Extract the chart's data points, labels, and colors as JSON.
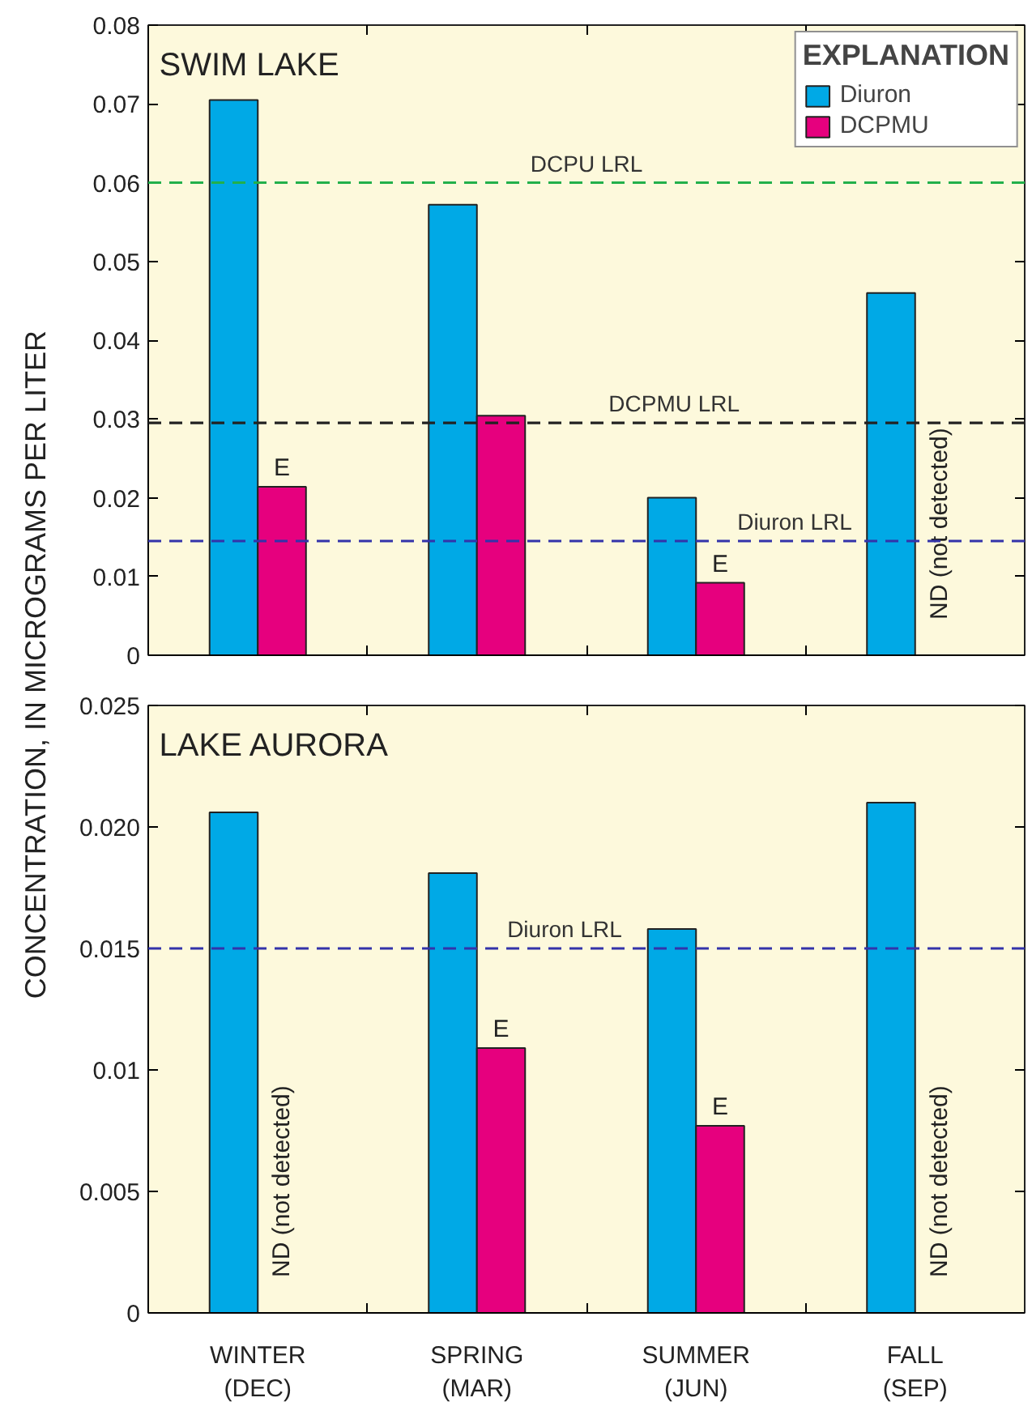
{
  "chart_data": [
    {
      "type": "bar",
      "title": "SWIM LAKE",
      "ylabel": "CONCENTRATION, IN MICROGRAMS PER LITER",
      "legend_title": "EXPLANATION",
      "legend": "top right",
      "tick_labels": "y",
      "categories": [
        "WINTER\n(DEC)",
        "SPRING\n(MAR)",
        "SUMMER\n(JUN)",
        "FALL\n(SEP)"
      ],
      "series": [
        {
          "name": "Diuron",
          "color": "#00a9e6",
          "values": [
            0.0705,
            0.0572,
            0.02,
            0.046
          ]
        },
        {
          "name": "DCPMU",
          "color": "#e6007e",
          "values": [
            0.0214,
            0.0304,
            0.0092,
            null
          ],
          "value_labels": [
            "E",
            null,
            "E",
            null
          ]
        }
      ],
      "ylim": [
        0,
        0.08
      ],
      "yticks": [
        0,
        0.01,
        0.02,
        0.03,
        0.04,
        0.05,
        0.06,
        0.07,
        0.08
      ],
      "ref_lines": [
        {
          "axis": "y",
          "value": 0.06,
          "label": "DCPU LRL",
          "color": "#22b04b",
          "line_style": "dashed"
        },
        {
          "axis": "y",
          "value": 0.0295,
          "label": "DCPMU LRL",
          "color": "#222222",
          "line_style": "dashed"
        },
        {
          "axis": "y",
          "value": 0.0145,
          "label": "Diuron LRL",
          "color": "#3333aa",
          "line_style": "dashed"
        }
      ],
      "annotations": [
        {
          "text": "ND (not detected)",
          "x": "FALL\n(SEP)"
        }
      ]
    },
    {
      "type": "bar",
      "title": "LAKE AURORA",
      "categories": [
        "WINTER\n(DEC)",
        "SPRING\n(MAR)",
        "SUMMER\n(JUN)",
        "FALL\n(SEP)"
      ],
      "series": [
        {
          "color": "#00a9e6",
          "values": [
            0.0206,
            0.0181,
            0.0158,
            0.021
          ]
        },
        {
          "color": "#e6007e",
          "values": [
            null,
            0.0109,
            0.0077,
            null
          ],
          "value_labels": [
            null,
            "E",
            "E",
            null
          ]
        }
      ],
      "ylim": [
        0,
        0.025
      ],
      "yticks": [
        0,
        0.005,
        0.01,
        0.015,
        {
          "value": 0.02,
          "label": "0.020"
        },
        0.025
      ],
      "ref_lines": [
        {
          "axis": "y",
          "value": 0.015,
          "label": "Diuron LRL",
          "color": "#3333aa",
          "line_style": "dashed"
        }
      ],
      "annotations": [
        {
          "text": "ND (not detected)",
          "x": "WINTER\n(DEC)"
        },
        {
          "text": "ND (not detected)",
          "x": "FALL\n(SEP)"
        }
      ]
    }
  ]
}
